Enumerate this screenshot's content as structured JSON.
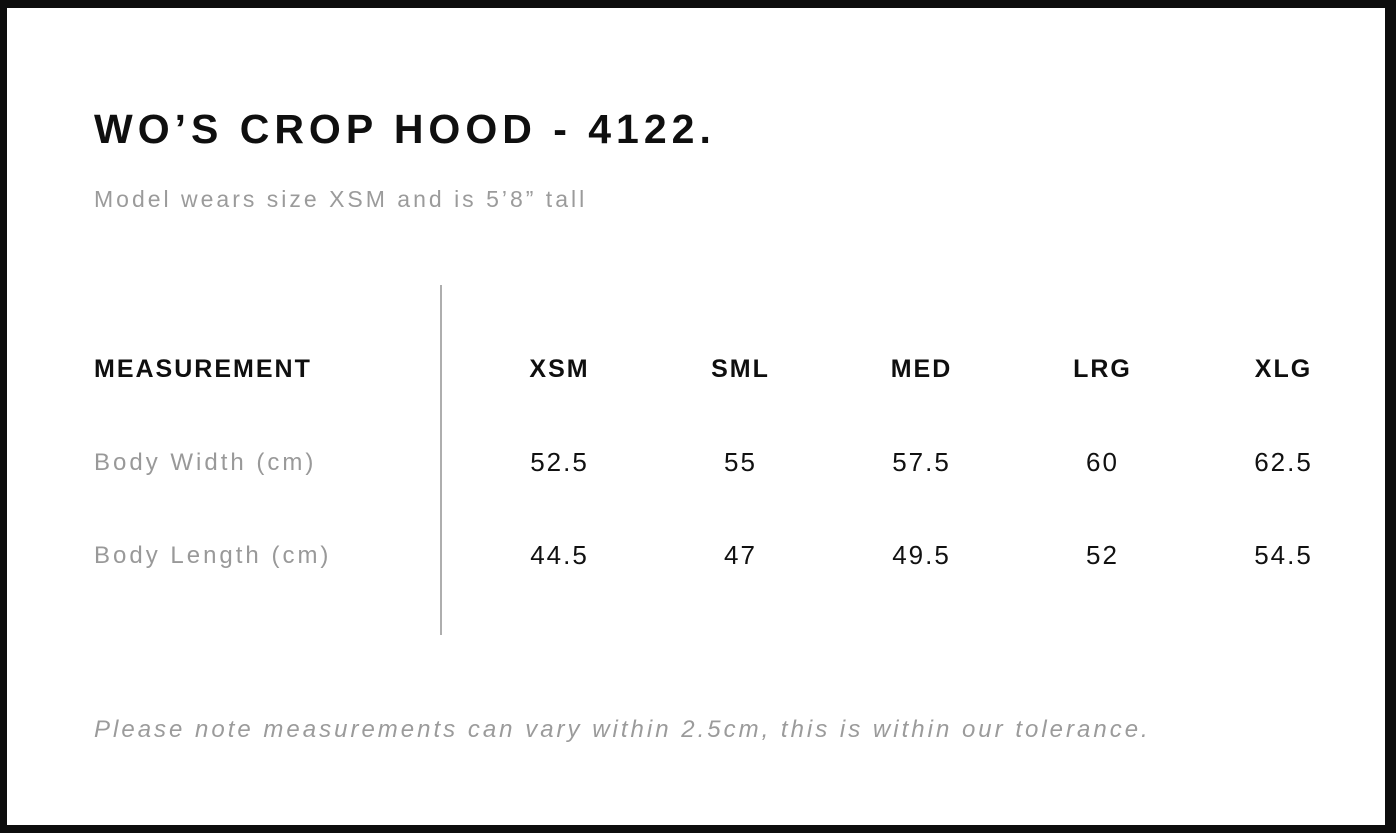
{
  "page": {
    "title": "WO’S CROP HOOD - 4122.",
    "subtitle": "Model wears size XSM and is 5’8” tall",
    "note": "Please note measurements can vary within 2.5cm, this is within our tolerance."
  },
  "size_chart": {
    "header_label": "MEASUREMENT",
    "sizes": [
      "XSM",
      "SML",
      "MED",
      "LRG",
      "XLG"
    ],
    "rows": [
      {
        "label": "Body Width (cm)",
        "values": [
          "52.5",
          "55",
          "57.5",
          "60",
          "62.5"
        ]
      },
      {
        "label": "Body Length (cm)",
        "values": [
          "44.5",
          "47",
          "49.5",
          "52",
          "54.5"
        ]
      }
    ]
  },
  "colors": {
    "frame": "#0d0d0d",
    "text_primary": "#0f0f0f",
    "text_muted": "#9b9b9b",
    "divider": "#aeaeae",
    "background": "#ffffff"
  }
}
